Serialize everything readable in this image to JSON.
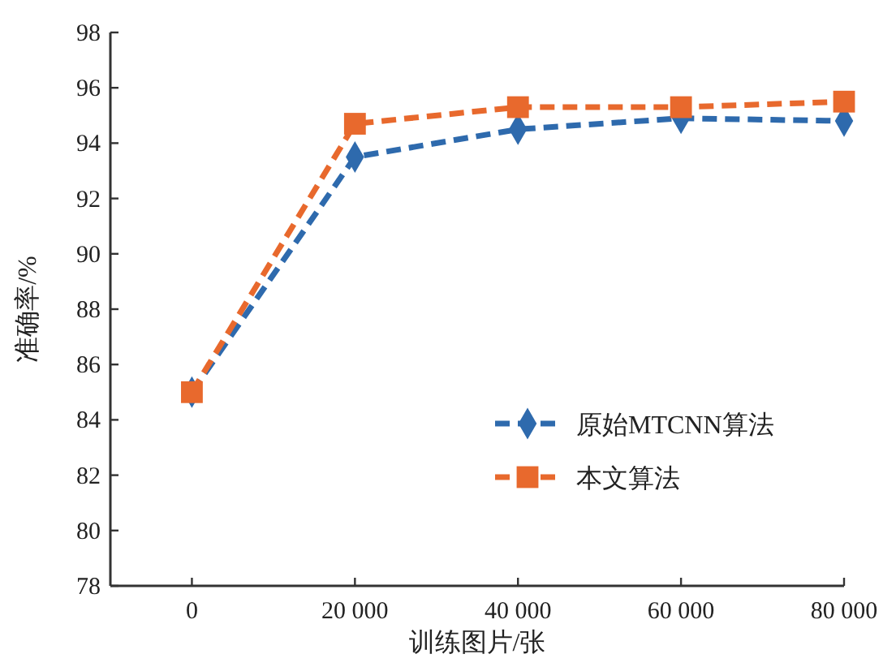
{
  "chart_data": {
    "type": "line",
    "xlabel": "训练图片/张",
    "ylabel": "准确率/%",
    "x": [
      0,
      20000,
      40000,
      60000,
      80000
    ],
    "xlim": [
      -10000,
      80000
    ],
    "xticks": [
      {
        "value": 0,
        "label": "0"
      },
      {
        "value": 20000,
        "label": "20 000"
      },
      {
        "value": 40000,
        "label": "40 000"
      },
      {
        "value": 60000,
        "label": "60 000"
      },
      {
        "value": 80000,
        "label": "80 000"
      }
    ],
    "ylim": [
      78,
      98
    ],
    "yticks": [
      78,
      80,
      82,
      84,
      86,
      88,
      90,
      92,
      94,
      96,
      98
    ],
    "grid": false,
    "legend": "bottom right",
    "line_style": "dashed",
    "series": [
      {
        "name": "原始MTCNN算法",
        "color": "#2e6aad",
        "marker": "diamond",
        "values": [
          85,
          93.5,
          94.5,
          94.9,
          94.8
        ]
      },
      {
        "name": "本文算法",
        "color": "#e8692d",
        "marker": "square",
        "values": [
          85,
          94.7,
          95.3,
          95.3,
          95.5
        ]
      }
    ]
  }
}
